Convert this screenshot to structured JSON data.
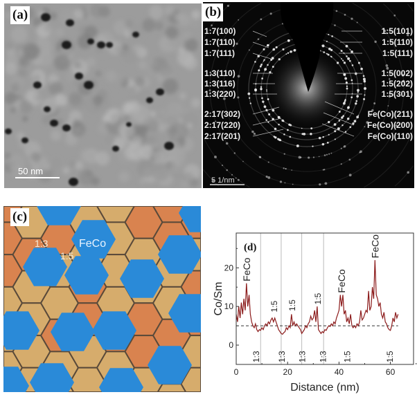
{
  "panels": {
    "a": {
      "label": "(a)",
      "scale_bar": "50 nm"
    },
    "b": {
      "label": "(b)",
      "scale_bar": "5 1/nm",
      "left_labels": [
        "1:7(100)",
        "1:7(110)",
        "1:7(111)",
        "1:3(110)",
        "1:3(116)",
        "1:3(220)",
        "2:17(302)",
        "2:17(220)",
        "2:17(201)"
      ],
      "right_labels": [
        "1:5(101)",
        "1:5(110)",
        "1:5(111)",
        "1:5(002)",
        "1:5(202)",
        "1:5(301)",
        "Fe(Co)(211)",
        "Fe(Co)(200)",
        "Fe(Co)(110)"
      ]
    },
    "c": {
      "label": "(c)",
      "phase_labels": {
        "p13": "1:3",
        "p15": "1:5",
        "feco": "FeCo"
      },
      "colors": {
        "feco": "#2a8ad8",
        "p15": "#d9834f",
        "p13": "#d6ac6c",
        "boundary": "#5a4a3a"
      }
    },
    "d": {
      "label": "(d)"
    }
  },
  "chart_data": {
    "type": "line",
    "xlabel": "Distance (nm)",
    "ylabel": "Co/Sm",
    "xlim": [
      0,
      69
    ],
    "ylim": [
      -5,
      29
    ],
    "xticks": [
      0,
      20,
      40,
      60
    ],
    "yticks": [
      0,
      10,
      20
    ],
    "grid": false,
    "line_color": "#8b1a1a",
    "reference_line_y": 5,
    "vertical_lines_x": [
      9.5,
      17.5,
      25.5,
      34
    ],
    "annotations": [
      {
        "text": "FeCo",
        "x": 4,
        "y": 16.5
      },
      {
        "text": "1:5",
        "x": 14.5,
        "y": 8.5
      },
      {
        "text": "1:5",
        "x": 21.5,
        "y": 8.8
      },
      {
        "text": "1:5",
        "x": 31.5,
        "y": 10.5
      },
      {
        "text": "FeCo",
        "x": 41,
        "y": 13.5
      },
      {
        "text": "FeCo",
        "x": 54,
        "y": 22.5
      },
      {
        "text": "1:3",
        "x": 7.5,
        "y": -1.5
      },
      {
        "text": "1:3",
        "x": 17.5,
        "y": -1.5
      },
      {
        "text": "1:3",
        "x": 25.5,
        "y": -1.5
      },
      {
        "text": "1:3",
        "x": 33.5,
        "y": -1.5
      },
      {
        "text": "1:5",
        "x": 43,
        "y": -1.5
      },
      {
        "text": "1:5",
        "x": 59.5,
        "y": -1.5
      }
    ],
    "points": [
      [
        0,
        8
      ],
      [
        0.5,
        6
      ],
      [
        1,
        10
      ],
      [
        1.5,
        7
      ],
      [
        2,
        11
      ],
      [
        2.5,
        8
      ],
      [
        3,
        12
      ],
      [
        3.5,
        9
      ],
      [
        4,
        16
      ],
      [
        4.5,
        10
      ],
      [
        5,
        13
      ],
      [
        5.5,
        8
      ],
      [
        6,
        6
      ],
      [
        6.5,
        5
      ],
      [
        7,
        4.5
      ],
      [
        7.5,
        5.5
      ],
      [
        8,
        4
      ],
      [
        8.5,
        3.5
      ],
      [
        9,
        4
      ],
      [
        9.5,
        3.8
      ],
      [
        10,
        4.5
      ],
      [
        10.5,
        4
      ],
      [
        11,
        5
      ],
      [
        11.5,
        5.5
      ],
      [
        12,
        5
      ],
      [
        12.5,
        6
      ],
      [
        13,
        5.5
      ],
      [
        13.5,
        6.5
      ],
      [
        14,
        7
      ],
      [
        14.5,
        6
      ],
      [
        15,
        7
      ],
      [
        15.5,
        6
      ],
      [
        16,
        5
      ],
      [
        16.5,
        4
      ],
      [
        17,
        3.5
      ],
      [
        17.5,
        3
      ],
      [
        18,
        2.8
      ],
      [
        18.5,
        3.2
      ],
      [
        19,
        3.5
      ],
      [
        19.5,
        4.5
      ],
      [
        20,
        4
      ],
      [
        20.5,
        5
      ],
      [
        21,
        4.5
      ],
      [
        21.5,
        8
      ],
      [
        22,
        5
      ],
      [
        22.5,
        6
      ],
      [
        23,
        5
      ],
      [
        23.5,
        5.5
      ],
      [
        24,
        5
      ],
      [
        24.5,
        4.5
      ],
      [
        25,
        4
      ],
      [
        25.5,
        3
      ],
      [
        26,
        3.5
      ],
      [
        26.5,
        4
      ],
      [
        27,
        5
      ],
      [
        27.5,
        4.5
      ],
      [
        28,
        5.5
      ],
      [
        28.5,
        6
      ],
      [
        29,
        7.5
      ],
      [
        29.5,
        6.5
      ],
      [
        30,
        7
      ],
      [
        30.5,
        9
      ],
      [
        31,
        6
      ],
      [
        31.5,
        10
      ],
      [
        32,
        4
      ],
      [
        32.5,
        3.5
      ],
      [
        33,
        3
      ],
      [
        33.5,
        3.5
      ],
      [
        34,
        3.2
      ],
      [
        34.5,
        4
      ],
      [
        35,
        3.8
      ],
      [
        35.5,
        4.5
      ],
      [
        36,
        5
      ],
      [
        36.5,
        4.8
      ],
      [
        37,
        5.5
      ],
      [
        37.5,
        5
      ],
      [
        38,
        6
      ],
      [
        38.5,
        5.5
      ],
      [
        39,
        7
      ],
      [
        39.5,
        8
      ],
      [
        40,
        9
      ],
      [
        40.5,
        13
      ],
      [
        41,
        10
      ],
      [
        41.5,
        13
      ],
      [
        42,
        8
      ],
      [
        42.5,
        9
      ],
      [
        43,
        6
      ],
      [
        43.5,
        7
      ],
      [
        44,
        5.5
      ],
      [
        44.5,
        8
      ],
      [
        45,
        5
      ],
      [
        45.5,
        4.5
      ],
      [
        46,
        5
      ],
      [
        46.5,
        4.5
      ],
      [
        47,
        5.5
      ],
      [
        47.5,
        5
      ],
      [
        48,
        6
      ],
      [
        48.5,
        9
      ],
      [
        49,
        6.5
      ],
      [
        49.5,
        7
      ],
      [
        50,
        8
      ],
      [
        50.5,
        9
      ],
      [
        51,
        8.5
      ],
      [
        51.5,
        14
      ],
      [
        52,
        9
      ],
      [
        52.5,
        10
      ],
      [
        53,
        15
      ],
      [
        53.5,
        12
      ],
      [
        54,
        22
      ],
      [
        54.5,
        13
      ],
      [
        55,
        12
      ],
      [
        55.5,
        10
      ],
      [
        56,
        11
      ],
      [
        56.5,
        8
      ],
      [
        57,
        7
      ],
      [
        57.5,
        8.5
      ],
      [
        58,
        6
      ],
      [
        58.5,
        5.5
      ],
      [
        59,
        4.5
      ],
      [
        59.5,
        4
      ],
      [
        60,
        3.8
      ],
      [
        60.5,
        5
      ],
      [
        61,
        7
      ],
      [
        61.5,
        6
      ],
      [
        62,
        8.5
      ],
      [
        62.5,
        7
      ],
      [
        63,
        8
      ]
    ]
  }
}
